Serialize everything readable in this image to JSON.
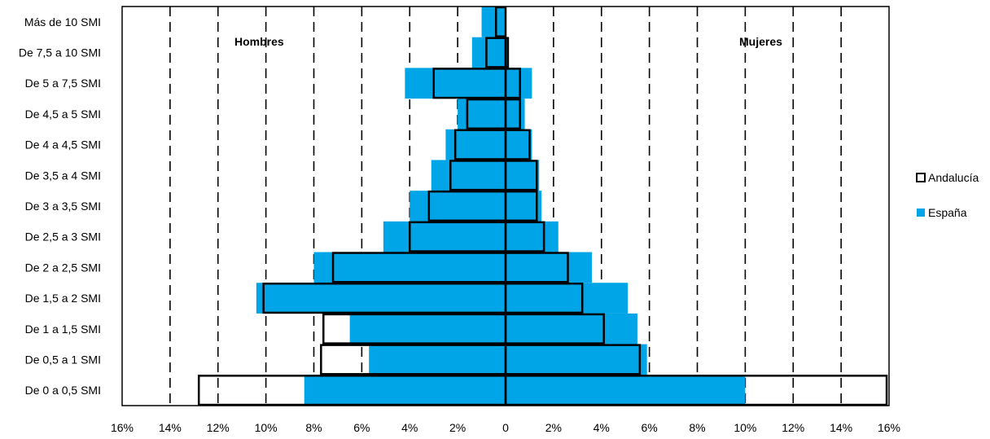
{
  "chart_data": {
    "type": "bar",
    "orientation": "horizontal",
    "layout": "population-pyramid",
    "categories": [
      "De 0 a 0,5 SMI",
      "De 0,5 a 1 SMI",
      "De 1 a 1,5 SMI",
      "De 1,5 a 2 SMI",
      "De 2 a 2,5 SMI",
      "De 2,5 a 3 SMI",
      "De 3 a 3,5 SMI",
      "De 3,5 a 4 SMI",
      "De 4 a 4,5 SMI",
      "De 4,5 a 5 SMI",
      "De 5 a 7,5 SMI",
      "De 7,5 a 10 SMI",
      "Más de 10 SMI"
    ],
    "group_labels": {
      "left": "Hombres",
      "right": "Mujeres"
    },
    "x_ticks": [
      "16%",
      "14%",
      "12%",
      "10%",
      "8%",
      "6%",
      "4%",
      "2%",
      "0",
      "2%",
      "4%",
      "6%",
      "8%",
      "10%",
      "12%",
      "14%",
      "16%"
    ],
    "xlim": [
      -16,
      16
    ],
    "grid": "vertical dashed",
    "legend_position": "right",
    "series": [
      {
        "name": "Andalucía",
        "style": "outline",
        "color": "#000000",
        "hombres": [
          12.8,
          7.7,
          7.6,
          10.1,
          7.2,
          4.0,
          3.2,
          2.3,
          2.1,
          1.6,
          3.0,
          0.8,
          0.4
        ],
        "mujeres": [
          15.9,
          5.6,
          4.1,
          3.2,
          2.6,
          1.6,
          1.3,
          1.3,
          1.0,
          0.6,
          0.6,
          0.1,
          0.0
        ]
      },
      {
        "name": "España",
        "style": "filled",
        "color": "#00a5e8",
        "hombres": [
          8.4,
          5.7,
          6.5,
          10.4,
          8.0,
          5.1,
          4.0,
          3.1,
          2.5,
          2.0,
          4.2,
          1.4,
          1.0
        ],
        "mujeres": [
          10.0,
          5.9,
          5.5,
          5.1,
          3.6,
          2.2,
          1.5,
          1.4,
          1.1,
          0.8,
          1.1,
          0.1,
          0.0
        ]
      }
    ]
  }
}
